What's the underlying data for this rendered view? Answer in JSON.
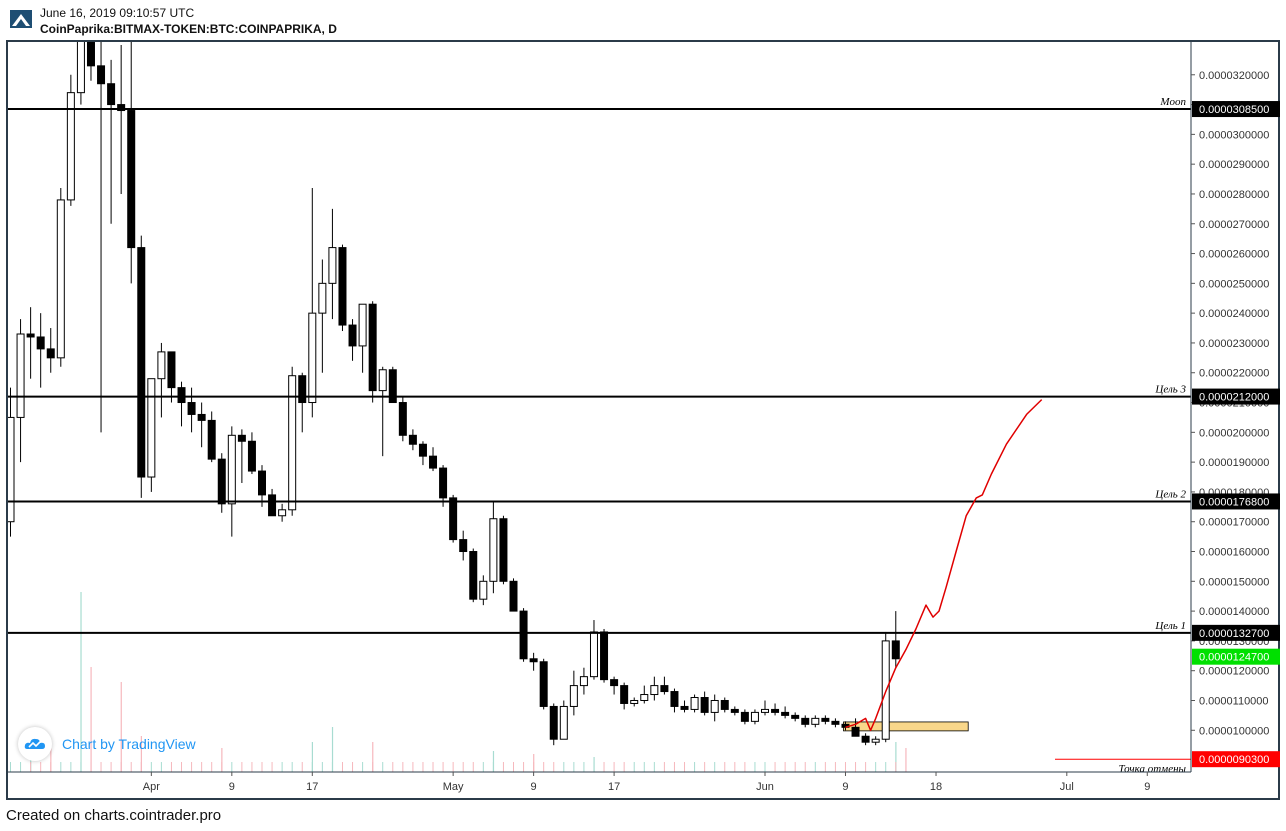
{
  "header": {
    "date": "June 16, 2019 09:10:57 UTC",
    "symbol": "CoinPaprika:BITMAX-TOKEN:BTC:COINPAPRIKA, D"
  },
  "watermark": {
    "text": "Chart by TradingView"
  },
  "footer": {
    "text": "Created on charts.cointrader.pro"
  },
  "colors": {
    "up_body": "#ffffff",
    "down_body": "#000000",
    "forecast": "#e00000",
    "last_price_badge": "#00e000",
    "stop_badge": "#ff0000",
    "level_badge": "#000000",
    "zone_fill": "#f9d78a",
    "volume_up": "#a8dcd1",
    "volume_down": "#f6b8bd",
    "frame": "#2b3b49"
  },
  "chart_data": {
    "type": "candlestick",
    "y_axis": {
      "position": "right",
      "range": [
        8.6e-06,
        3.31e-05
      ],
      "ticks": [
        "0.0000320000",
        "0.0000310000",
        "0.0000300000",
        "0.0000290000",
        "0.0000280000",
        "0.0000270000",
        "0.0000260000",
        "0.0000250000",
        "0.0000240000",
        "0.0000230000",
        "0.0000220000",
        "0.0000210000",
        "0.0000200000",
        "0.0000190000",
        "0.0000180000",
        "0.0000170000",
        "0.0000160000",
        "0.0000150000",
        "0.0000140000",
        "0.0000130000",
        "0.0000120000",
        "0.0000110000",
        "0.0000100000"
      ]
    },
    "x_axis": {
      "labels": [
        {
          "text": "Apr",
          "bar": 14
        },
        {
          "text": "9",
          "bar": 22
        },
        {
          "text": "17",
          "bar": 30
        },
        {
          "text": "May",
          "bar": 44
        },
        {
          "text": "9",
          "bar": 52
        },
        {
          "text": "17",
          "bar": 60
        },
        {
          "text": "Jun",
          "bar": 75
        },
        {
          "text": "9",
          "bar": 83
        },
        {
          "text": "18",
          "bar": 92
        },
        {
          "text": "Jul",
          "bar": 105
        },
        {
          "text": "9",
          "bar": 113
        }
      ]
    },
    "candles": [
      {
        "o": 1.7e-05,
        "h": 2.15e-05,
        "l": 1.65e-05,
        "c": 2.05e-05
      },
      {
        "o": 2.05e-05,
        "h": 2.38e-05,
        "l": 1.9e-05,
        "c": 2.33e-05
      },
      {
        "o": 2.33e-05,
        "h": 2.42e-05,
        "l": 2.18e-05,
        "c": 2.32e-05
      },
      {
        "o": 2.32e-05,
        "h": 2.4e-05,
        "l": 2.15e-05,
        "c": 2.28e-05
      },
      {
        "o": 2.28e-05,
        "h": 2.35e-05,
        "l": 2.2e-05,
        "c": 2.25e-05
      },
      {
        "o": 2.25e-05,
        "h": 2.82e-05,
        "l": 2.22e-05,
        "c": 2.78e-05
      },
      {
        "o": 2.78e-05,
        "h": 3.2e-05,
        "l": 2.76e-05,
        "c": 3.14e-05
      },
      {
        "o": 3.14e-05,
        "h": 3.35e-05,
        "l": 3.1e-05,
        "c": 3.32e-05
      },
      {
        "o": 3.32e-05,
        "h": 3.35e-05,
        "l": 3.18e-05,
        "c": 3.23e-05
      },
      {
        "o": 3.23e-05,
        "h": 3.4e-05,
        "l": 2e-05,
        "c": 3.17e-05
      },
      {
        "o": 3.17e-05,
        "h": 3.25e-05,
        "l": 2.7e-05,
        "c": 3.1e-05
      },
      {
        "o": 3.1e-05,
        "h": 3.3e-05,
        "l": 2.8e-05,
        "c": 3.08e-05
      },
      {
        "o": 3.08e-05,
        "h": 3.38e-05,
        "l": 2.5e-05,
        "c": 2.62e-05
      },
      {
        "o": 2.62e-05,
        "h": 2.66e-05,
        "l": 1.78e-05,
        "c": 1.85e-05
      },
      {
        "o": 1.85e-05,
        "h": 2.18e-05,
        "l": 1.8e-05,
        "c": 2.18e-05
      },
      {
        "o": 2.18e-05,
        "h": 2.3e-05,
        "l": 2.05e-05,
        "c": 2.27e-05
      },
      {
        "o": 2.27e-05,
        "h": 2.27e-05,
        "l": 2.1e-05,
        "c": 2.15e-05
      },
      {
        "o": 2.15e-05,
        "h": 2.17e-05,
        "l": 2.02e-05,
        "c": 2.1e-05
      },
      {
        "o": 2.1e-05,
        "h": 2.15e-05,
        "l": 2e-05,
        "c": 2.06e-05
      },
      {
        "o": 2.06e-05,
        "h": 2.1e-05,
        "l": 1.95e-05,
        "c": 2.04e-05
      },
      {
        "o": 2.04e-05,
        "h": 2.07e-05,
        "l": 1.9e-05,
        "c": 1.91e-05
      },
      {
        "o": 1.91e-05,
        "h": 1.93e-05,
        "l": 1.73e-05,
        "c": 1.76e-05
      },
      {
        "o": 1.76e-05,
        "h": 2.02e-05,
        "l": 1.65e-05,
        "c": 1.99e-05
      },
      {
        "o": 1.99e-05,
        "h": 2.01e-05,
        "l": 1.83e-05,
        "c": 1.97e-05
      },
      {
        "o": 1.97e-05,
        "h": 2e-05,
        "l": 1.86e-05,
        "c": 1.87e-05
      },
      {
        "o": 1.87e-05,
        "h": 1.89e-05,
        "l": 1.75e-05,
        "c": 1.79e-05
      },
      {
        "o": 1.79e-05,
        "h": 1.81e-05,
        "l": 1.72e-05,
        "c": 1.72e-05
      },
      {
        "o": 1.72e-05,
        "h": 1.76e-05,
        "l": 1.7e-05,
        "c": 1.74e-05
      },
      {
        "o": 1.74e-05,
        "h": 2.22e-05,
        "l": 1.72e-05,
        "c": 2.19e-05
      },
      {
        "o": 2.19e-05,
        "h": 2.2e-05,
        "l": 2e-05,
        "c": 2.1e-05
      },
      {
        "o": 2.1e-05,
        "h": 2.82e-05,
        "l": 2.05e-05,
        "c": 2.4e-05
      },
      {
        "o": 2.4e-05,
        "h": 2.58e-05,
        "l": 2.2e-05,
        "c": 2.5e-05
      },
      {
        "o": 2.5e-05,
        "h": 2.75e-05,
        "l": 2.38e-05,
        "c": 2.62e-05
      },
      {
        "o": 2.62e-05,
        "h": 2.63e-05,
        "l": 2.34e-05,
        "c": 2.36e-05
      },
      {
        "o": 2.36e-05,
        "h": 2.38e-05,
        "l": 2.24e-05,
        "c": 2.29e-05
      },
      {
        "o": 2.29e-05,
        "h": 2.43e-05,
        "l": 2.2e-05,
        "c": 2.43e-05
      },
      {
        "o": 2.43e-05,
        "h": 2.44e-05,
        "l": 2.1e-05,
        "c": 2.14e-05
      },
      {
        "o": 2.14e-05,
        "h": 2.22e-05,
        "l": 1.92e-05,
        "c": 2.21e-05
      },
      {
        "o": 2.21e-05,
        "h": 2.22e-05,
        "l": 2.1e-05,
        "c": 2.1e-05
      },
      {
        "o": 2.1e-05,
        "h": 2.12e-05,
        "l": 1.97e-05,
        "c": 1.99e-05
      },
      {
        "o": 1.99e-05,
        "h": 2.01e-05,
        "l": 1.94e-05,
        "c": 1.96e-05
      },
      {
        "o": 1.96e-05,
        "h": 1.97e-05,
        "l": 1.89e-05,
        "c": 1.92e-05
      },
      {
        "o": 1.92e-05,
        "h": 1.95e-05,
        "l": 1.87e-05,
        "c": 1.88e-05
      },
      {
        "o": 1.88e-05,
        "h": 1.89e-05,
        "l": 1.75e-05,
        "c": 1.78e-05
      },
      {
        "o": 1.78e-05,
        "h": 1.79e-05,
        "l": 1.63e-05,
        "c": 1.64e-05
      },
      {
        "o": 1.64e-05,
        "h": 1.67e-05,
        "l": 1.57e-05,
        "c": 1.6e-05
      },
      {
        "o": 1.6e-05,
        "h": 1.61e-05,
        "l": 1.43e-05,
        "c": 1.44e-05
      },
      {
        "o": 1.44e-05,
        "h": 1.52e-05,
        "l": 1.42e-05,
        "c": 1.5e-05
      },
      {
        "o": 1.5e-05,
        "h": 1.77e-05,
        "l": 1.46e-05,
        "c": 1.71e-05
      },
      {
        "o": 1.71e-05,
        "h": 1.72e-05,
        "l": 1.49e-05,
        "c": 1.5e-05
      },
      {
        "o": 1.5e-05,
        "h": 1.51e-05,
        "l": 1.4e-05,
        "c": 1.4e-05
      },
      {
        "o": 1.4e-05,
        "h": 1.41e-05,
        "l": 1.23e-05,
        "c": 1.24e-05
      },
      {
        "o": 1.24e-05,
        "h": 1.26e-05,
        "l": 1.2e-05,
        "c": 1.23e-05
      },
      {
        "o": 1.23e-05,
        "h": 1.24e-05,
        "l": 1.07e-05,
        "c": 1.08e-05
      },
      {
        "o": 1.08e-05,
        "h": 1.09e-05,
        "l": 9.5e-06,
        "c": 9.7e-06
      },
      {
        "o": 9.7e-06,
        "h": 1.1e-05,
        "l": 9.7e-06,
        "c": 1.08e-05
      },
      {
        "o": 1.08e-05,
        "h": 1.2e-05,
        "l": 1.05e-05,
        "c": 1.15e-05
      },
      {
        "o": 1.15e-05,
        "h": 1.21e-05,
        "l": 1.12e-05,
        "c": 1.18e-05
      },
      {
        "o": 1.18e-05,
        "h": 1.37e-05,
        "l": 1.17e-05,
        "c": 1.33e-05
      },
      {
        "o": 1.33e-05,
        "h": 1.34e-05,
        "l": 1.16e-05,
        "c": 1.17e-05
      },
      {
        "o": 1.17e-05,
        "h": 1.18e-05,
        "l": 1.12e-05,
        "c": 1.15e-05
      },
      {
        "o": 1.15e-05,
        "h": 1.16e-05,
        "l": 1.07e-05,
        "c": 1.09e-05
      },
      {
        "o": 1.09e-05,
        "h": 1.11e-05,
        "l": 1.08e-05,
        "c": 1.1e-05
      },
      {
        "o": 1.1e-05,
        "h": 1.15e-05,
        "l": 1.09e-05,
        "c": 1.12e-05
      },
      {
        "o": 1.12e-05,
        "h": 1.18e-05,
        "l": 1.1e-05,
        "c": 1.15e-05
      },
      {
        "o": 1.15e-05,
        "h": 1.18e-05,
        "l": 1.12e-05,
        "c": 1.13e-05
      },
      {
        "o": 1.13e-05,
        "h": 1.14e-05,
        "l": 1.06e-05,
        "c": 1.08e-05
      },
      {
        "o": 1.08e-05,
        "h": 1.1e-05,
        "l": 1.06e-05,
        "c": 1.07e-05
      },
      {
        "o": 1.07e-05,
        "h": 1.12e-05,
        "l": 1.06e-05,
        "c": 1.11e-05
      },
      {
        "o": 1.11e-05,
        "h": 1.13e-05,
        "l": 1.05e-05,
        "c": 1.06e-05
      },
      {
        "o": 1.06e-05,
        "h": 1.12e-05,
        "l": 1.03e-05,
        "c": 1.1e-05
      },
      {
        "o": 1.1e-05,
        "h": 1.11e-05,
        "l": 1.06e-05,
        "c": 1.07e-05
      },
      {
        "o": 1.07e-05,
        "h": 1.08e-05,
        "l": 1.05e-05,
        "c": 1.06e-05
      },
      {
        "o": 1.06e-05,
        "h": 1.07e-05,
        "l": 1.02e-05,
        "c": 1.03e-05
      },
      {
        "o": 1.03e-05,
        "h": 1.07e-05,
        "l": 1.02e-05,
        "c": 1.06e-05
      },
      {
        "o": 1.06e-05,
        "h": 1.1e-05,
        "l": 1.05e-05,
        "c": 1.07e-05
      },
      {
        "o": 1.07e-05,
        "h": 1.09e-05,
        "l": 1.05e-05,
        "c": 1.06e-05
      },
      {
        "o": 1.06e-05,
        "h": 1.08e-05,
        "l": 1.04e-05,
        "c": 1.05e-05
      },
      {
        "o": 1.05e-05,
        "h": 1.06e-05,
        "l": 1.03e-05,
        "c": 1.04e-05
      },
      {
        "o": 1.04e-05,
        "h": 1.05e-05,
        "l": 1.01e-05,
        "c": 1.02e-05
      },
      {
        "o": 1.02e-05,
        "h": 1.05e-05,
        "l": 1.01e-05,
        "c": 1.04e-05
      },
      {
        "o": 1.04e-05,
        "h": 1.05e-05,
        "l": 1.02e-05,
        "c": 1.03e-05
      },
      {
        "o": 1.03e-05,
        "h": 1.04e-05,
        "l": 1.01e-05,
        "c": 1.02e-05
      },
      {
        "o": 1.02e-05,
        "h": 1.03e-05,
        "l": 1e-05,
        "c": 1.01e-05
      },
      {
        "o": 1.01e-05,
        "h": 1.04e-05,
        "l": 9.8e-06,
        "c": 9.8e-06
      },
      {
        "o": 9.8e-06,
        "h": 9.9e-06,
        "l": 9.5e-06,
        "c": 9.6e-06
      },
      {
        "o": 9.6e-06,
        "h": 9.8e-06,
        "l": 9.5e-06,
        "c": 9.7e-06
      },
      {
        "o": 9.7e-06,
        "h": 1.33e-05,
        "l": 9.6e-06,
        "c": 1.3e-05
      },
      {
        "o": 1.3e-05,
        "h": 1.4e-05,
        "l": 1.21e-05,
        "c": 1.24e-05
      }
    ],
    "volume_bars": [
      {
        "bar": 2,
        "rel": 0.1,
        "dir": "up"
      },
      {
        "bar": 4,
        "rel": 0.08,
        "dir": "down"
      },
      {
        "bar": 7,
        "rel": 0.6,
        "dir": "up"
      },
      {
        "bar": 8,
        "rel": 0.35,
        "dir": "down"
      },
      {
        "bar": 11,
        "rel": 0.3,
        "dir": "down"
      },
      {
        "bar": 13,
        "rel": 0.12,
        "dir": "down"
      },
      {
        "bar": 21,
        "rel": 0.08,
        "dir": "down"
      },
      {
        "bar": 30,
        "rel": 0.1,
        "dir": "up"
      },
      {
        "bar": 32,
        "rel": 0.15,
        "dir": "up"
      },
      {
        "bar": 36,
        "rel": 0.1,
        "dir": "down"
      },
      {
        "bar": 48,
        "rel": 0.07,
        "dir": "up"
      },
      {
        "bar": 52,
        "rel": 0.06,
        "dir": "down"
      },
      {
        "bar": 58,
        "rel": 0.05,
        "dir": "up"
      },
      {
        "bar": 88,
        "rel": 0.1,
        "dir": "up"
      },
      {
        "bar": 89,
        "rel": 0.08,
        "dir": "down"
      }
    ],
    "levels": [
      {
        "label": "Moon",
        "value": 3.085e-05,
        "badge": "0.0000308500",
        "kind": "level"
      },
      {
        "label": "Цель 3",
        "value": 2.12e-05,
        "badge": "0.0000212000",
        "kind": "level"
      },
      {
        "label": "Цель 2",
        "value": 1.768e-05,
        "badge": "0.0000176800",
        "kind": "level"
      },
      {
        "label": "Цель 1",
        "value": 1.327e-05,
        "badge": "0.0000132700",
        "kind": "level"
      }
    ],
    "last_price": {
      "value": 1.247e-05,
      "badge": "0.0000124700"
    },
    "stop_level": {
      "label": "Точка отмены",
      "value": 9.03e-06,
      "badge": "0.0000090300"
    },
    "entry_zone": {
      "from_bar": 83,
      "to_bar": 95,
      "low": 9.98e-06,
      "high": 1.028e-05
    },
    "forecast_path": [
      {
        "bar": 83,
        "y": 1.01e-05
      },
      {
        "bar": 84,
        "y": 1.02e-05
      },
      {
        "bar": 85,
        "y": 1.04e-05
      },
      {
        "bar": 85.5,
        "y": 1e-05
      },
      {
        "bar": 86,
        "y": 1.04e-05
      },
      {
        "bar": 87,
        "y": 1.13e-05
      },
      {
        "bar": 88,
        "y": 1.21e-05
      },
      {
        "bar": 89,
        "y": 1.27e-05
      },
      {
        "bar": 90,
        "y": 1.34e-05
      },
      {
        "bar": 91,
        "y": 1.42e-05
      },
      {
        "bar": 91.7,
        "y": 1.38e-05
      },
      {
        "bar": 92.3,
        "y": 1.4e-05
      },
      {
        "bar": 93,
        "y": 1.48e-05
      },
      {
        "bar": 94,
        "y": 1.6e-05
      },
      {
        "bar": 95,
        "y": 1.72e-05
      },
      {
        "bar": 96,
        "y": 1.78e-05
      },
      {
        "bar": 96.6,
        "y": 1.79e-05
      },
      {
        "bar": 97.5,
        "y": 1.86e-05
      },
      {
        "bar": 99,
        "y": 1.96e-05
      },
      {
        "bar": 101,
        "y": 2.06e-05
      },
      {
        "bar": 102.5,
        "y": 2.11e-05
      }
    ]
  }
}
